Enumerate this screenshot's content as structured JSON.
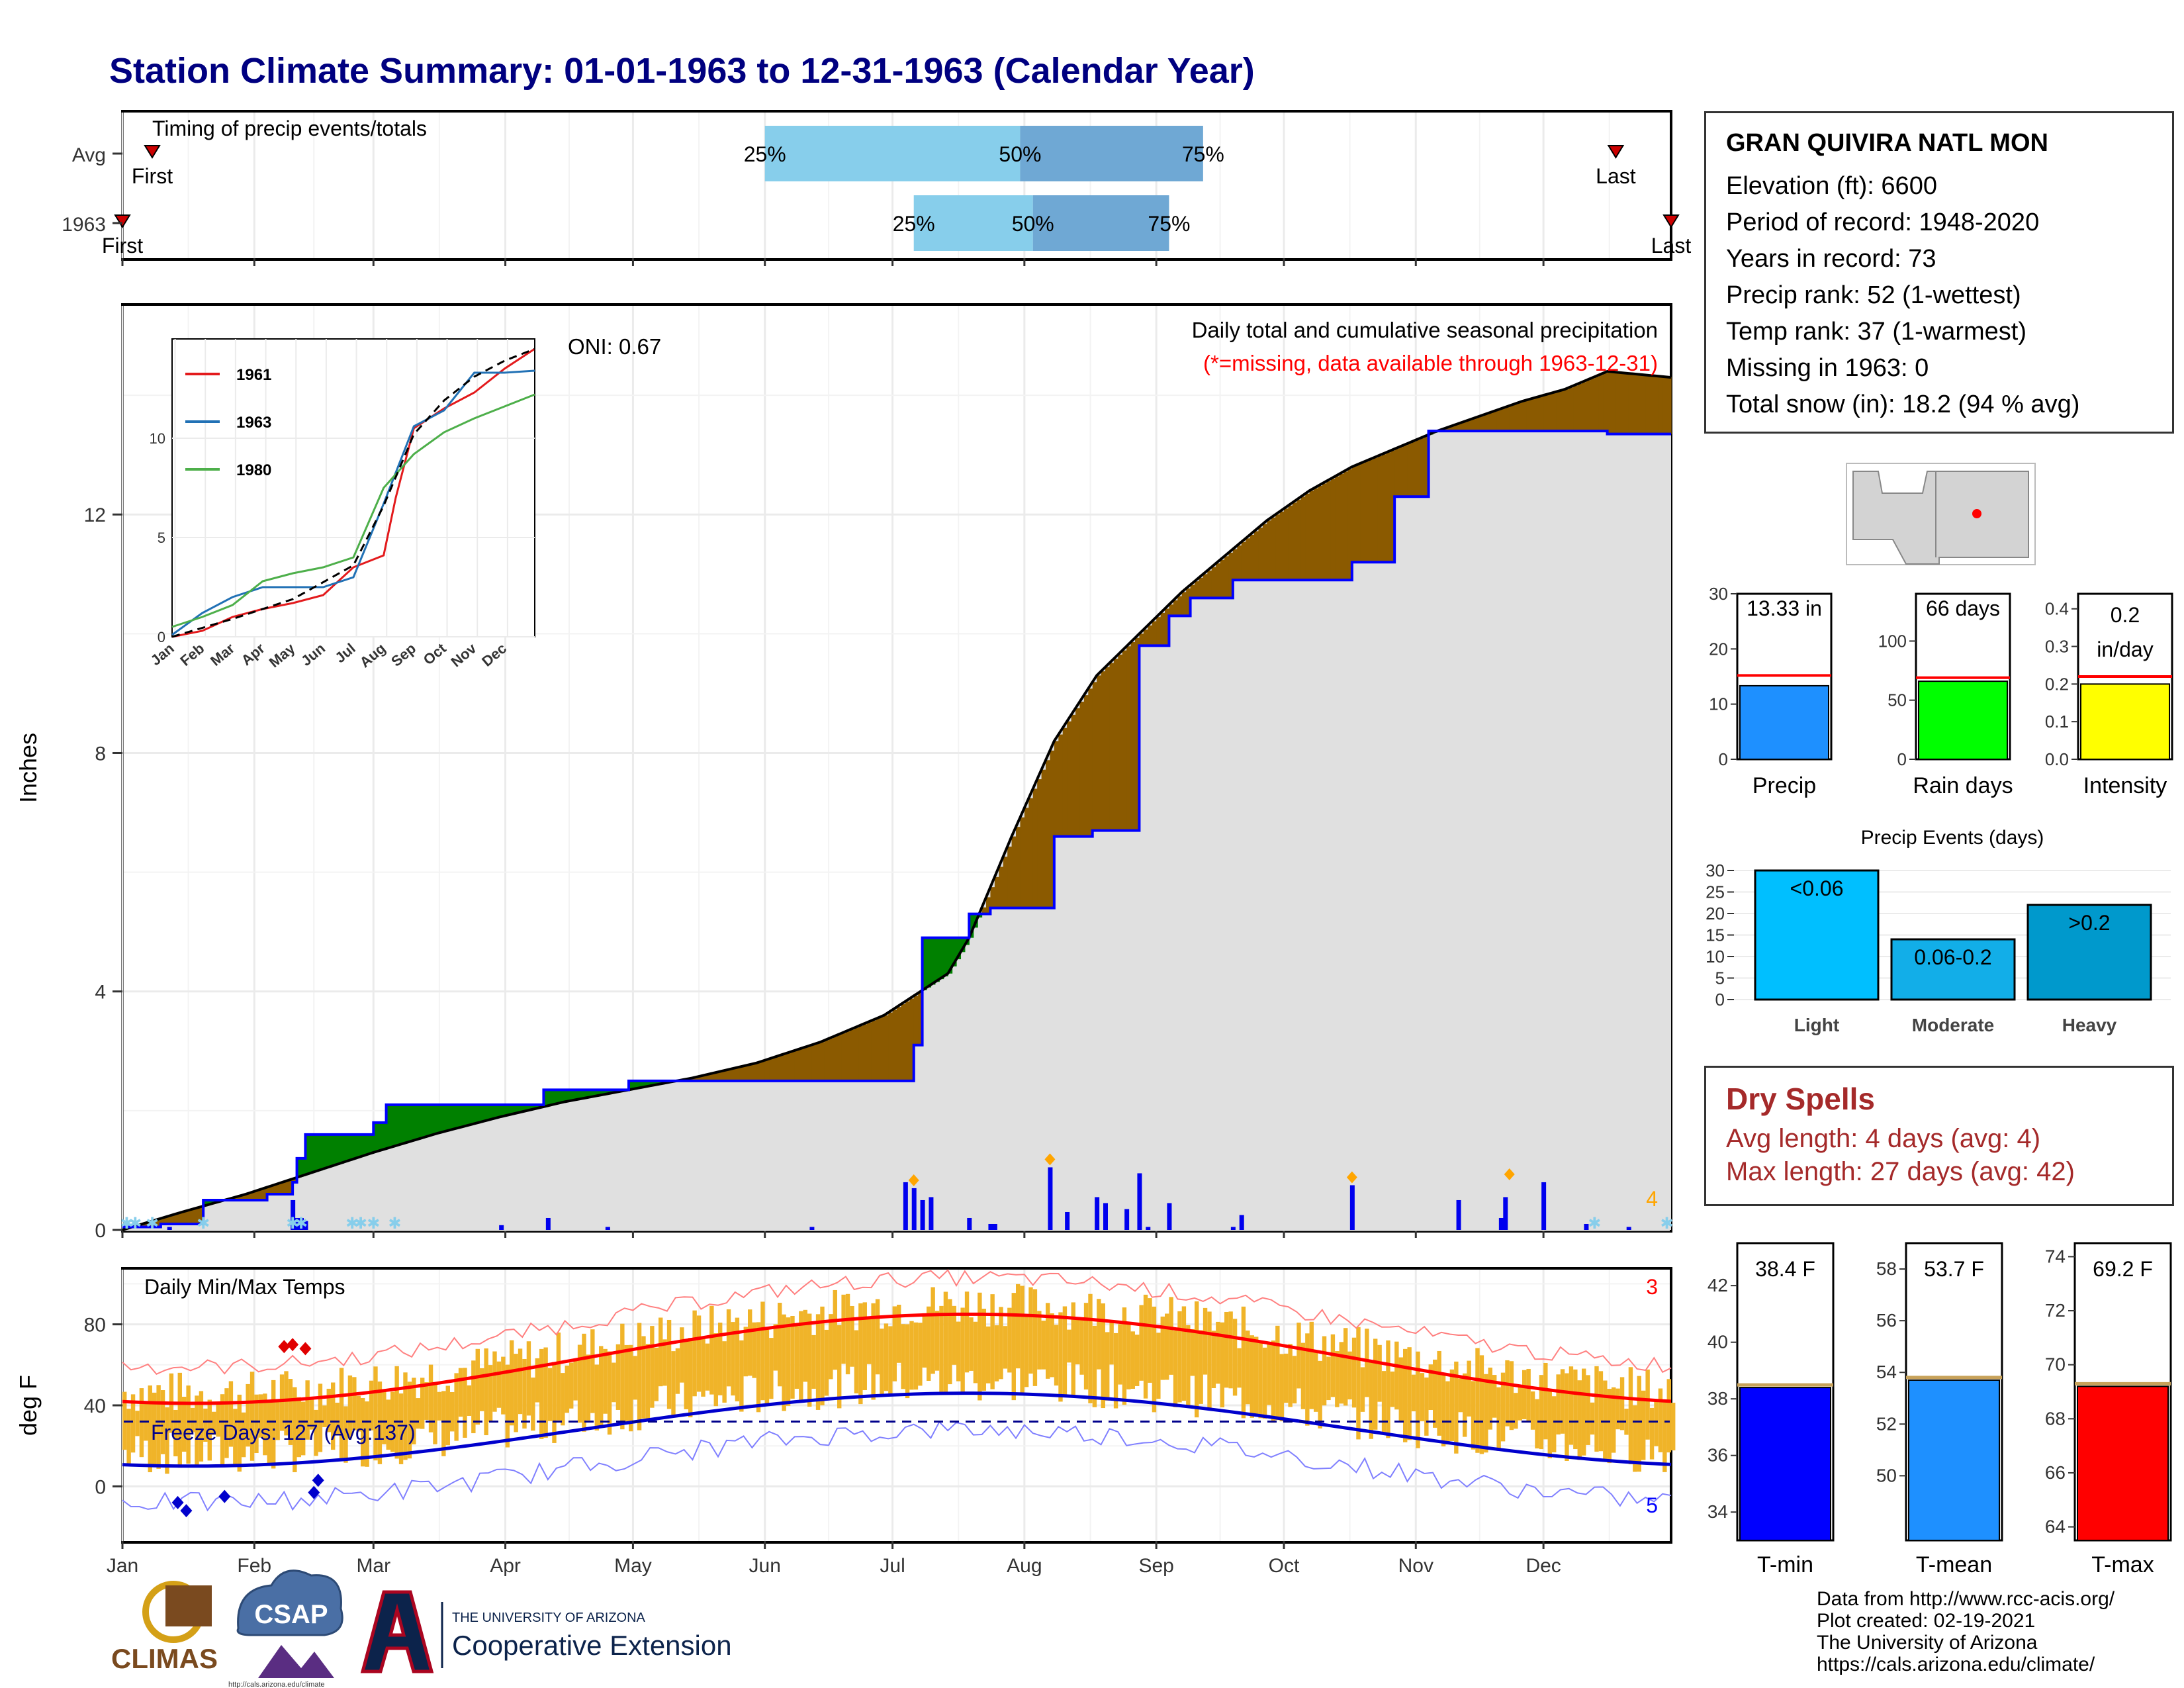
{
  "title": "Station Climate Summary: 01-01-1963 to 12-31-1963 (Calendar Year)",
  "timing": {
    "panel_title": "Timing of precip events/totals",
    "rows": [
      {
        "label": "Avg",
        "first_label": "First",
        "last_label": "Last",
        "p25": "25%",
        "p50": "50%",
        "p75": "75%",
        "first_doy": 8,
        "last_doy": 352,
        "q25_doy": 152,
        "q50_doy": 212,
        "q75_doy": 255
      },
      {
        "label": "1963",
        "first_label": "First",
        "last_label": "Last",
        "p25": "25%",
        "p50": "50%",
        "p75": "75%",
        "first_doy": 1,
        "last_doy": 365,
        "q25_doy": 187,
        "q50_doy": 215,
        "q75_doy": 247
      }
    ]
  },
  "precip": {
    "title_line1": "Daily total and cumulative seasonal precipitation",
    "title_line2": "(*=missing, data available through 1963-12-31)",
    "oni": "ONI: 0.67",
    "ylabel": "Inches",
    "ylim": [
      0,
      15.5
    ],
    "yticks": [
      "0",
      "4",
      "8",
      "12"
    ],
    "corner_count": "4",
    "normal_cumulative": {
      "doy": [
        1,
        15,
        30,
        45,
        60,
        75,
        90,
        105,
        120,
        135,
        150,
        165,
        180,
        195,
        200,
        210,
        220,
        230,
        240,
        250,
        260,
        270,
        280,
        290,
        300,
        310,
        320,
        330,
        340,
        350,
        365
      ],
      "in": [
        0,
        0.3,
        0.6,
        0.95,
        1.3,
        1.62,
        1.9,
        2.15,
        2.35,
        2.55,
        2.8,
        3.15,
        3.6,
        4.3,
        4.9,
        6.6,
        8.2,
        9.3,
        10.0,
        10.7,
        11.3,
        11.9,
        12.4,
        12.8,
        13.1,
        13.4,
        13.65,
        13.9,
        14.1,
        14.4,
        14.3
      ]
    },
    "year_cumulative": {
      "doy": [
        1,
        10,
        20,
        35,
        41,
        42,
        44,
        60,
        63,
        90,
        100,
        120,
        151,
        186,
        187,
        189,
        200,
        205,
        220,
        229,
        240,
        247,
        252,
        262,
        290,
        300,
        308,
        350,
        365
      ],
      "in": [
        0.05,
        0.1,
        0.5,
        0.6,
        0.8,
        1.2,
        1.6,
        1.8,
        2.1,
        2.1,
        2.35,
        2.5,
        2.5,
        2.5,
        3.1,
        4.9,
        5.3,
        5.4,
        6.6,
        6.7,
        9.8,
        10.3,
        10.6,
        10.9,
        11.2,
        12.3,
        13.4,
        13.35,
        13.35
      ]
    },
    "daily_bars": {
      "doy": [
        12,
        41,
        42,
        43,
        44,
        90,
        101,
        115,
        163,
        185,
        187,
        189,
        191,
        200,
        205,
        206,
        219,
        223,
        230,
        232,
        237,
        240,
        242,
        247,
        262,
        264,
        290,
        315,
        325,
        326,
        335,
        345,
        355
      ],
      "in": [
        0.05,
        0.5,
        0.2,
        0.2,
        0.15,
        0.08,
        0.2,
        0.05,
        0.05,
        0.8,
        0.7,
        0.5,
        0.55,
        0.2,
        0.1,
        0.1,
        1.05,
        0.3,
        0.55,
        0.45,
        0.35,
        0.95,
        0.05,
        0.45,
        0.05,
        0.25,
        0.75,
        0.5,
        0.2,
        0.55,
        0.8,
        0.1,
        0.05
      ]
    },
    "large_events_doy": [
      187,
      219,
      290,
      327
    ],
    "snow_doy": [
      2,
      4,
      8,
      20,
      41,
      43,
      55,
      57,
      60,
      65,
      347,
      364
    ]
  },
  "inset": {
    "yticks": [
      "0",
      "5",
      "10"
    ],
    "months": [
      "Jan",
      "Feb",
      "Mar",
      "Apr",
      "May",
      "Jun",
      "Jul",
      "Aug",
      "Sep",
      "Oct",
      "Nov",
      "Dec"
    ],
    "series": [
      {
        "name": "1961",
        "color": "#e31a1c",
        "pts": [
          [
            0,
            0
          ],
          [
            1,
            0.3
          ],
          [
            2,
            1
          ],
          [
            3,
            1.4
          ],
          [
            4,
            1.7
          ],
          [
            5,
            2.1
          ],
          [
            6,
            3.5
          ],
          [
            7,
            4.1
          ],
          [
            7.4,
            7
          ],
          [
            8,
            10.5
          ],
          [
            9,
            11.5
          ],
          [
            10,
            12.3
          ],
          [
            11,
            13.5
          ],
          [
            12,
            14.5
          ]
        ]
      },
      {
        "name": "1963",
        "color": "#2171b5",
        "pts": [
          [
            0,
            0.1
          ],
          [
            1,
            1.2
          ],
          [
            2,
            2
          ],
          [
            3,
            2.5
          ],
          [
            4,
            2.5
          ],
          [
            5,
            2.5
          ],
          [
            6,
            3
          ],
          [
            7,
            6.7
          ],
          [
            8,
            10.6
          ],
          [
            9,
            11.4
          ],
          [
            10,
            13.3
          ],
          [
            11,
            13.3
          ],
          [
            12,
            13.4
          ]
        ]
      },
      {
        "name": "1980",
        "color": "#4daf4a",
        "pts": [
          [
            0,
            0.5
          ],
          [
            1,
            1
          ],
          [
            2,
            1.6
          ],
          [
            3,
            2.8
          ],
          [
            4,
            3.2
          ],
          [
            5,
            3.5
          ],
          [
            6,
            4
          ],
          [
            7,
            7.5
          ],
          [
            8,
            9.2
          ],
          [
            9,
            10.3
          ],
          [
            10,
            11
          ],
          [
            11,
            11.6
          ],
          [
            12,
            12.2
          ]
        ]
      }
    ],
    "normal": [
      [
        0,
        0
      ],
      [
        2,
        0.9
      ],
      [
        4,
        1.9
      ],
      [
        6,
        3.6
      ],
      [
        7,
        6.6
      ],
      [
        8,
        10.2
      ],
      [
        9,
        11.9
      ],
      [
        10,
        13.1
      ],
      [
        11,
        13.9
      ],
      [
        12,
        14.5
      ]
    ]
  },
  "temp": {
    "panel_title": "Daily Min/Max Temps",
    "ylabel": "deg F",
    "freeze_text": "Freeze Days: 127 (Avg:137)",
    "yticks": [
      "0",
      "40",
      "80"
    ],
    "ylim": [
      -27,
      107
    ],
    "count_high": "3",
    "count_low": "5",
    "freeze_line": 32
  },
  "months": [
    "Jan",
    "Feb",
    "Mar",
    "Apr",
    "May",
    "Jun",
    "Jul",
    "Aug",
    "Sep",
    "Oct",
    "Nov",
    "Dec"
  ],
  "station": {
    "name": "GRAN QUIVIRA NATL MON",
    "lines": [
      "Elevation (ft): 6600",
      "Period of record: 1948-2020",
      "Years in record: 73",
      "Precip rank: 52 (1-wettest)",
      "Temp rank: 37 (1-warmest)",
      "Missing in 1963: 0",
      "Total snow (in): 18.2 (94 % avg)"
    ]
  },
  "mini_bars": [
    {
      "label": "Precip",
      "value_text": "13.33 in",
      "value": 13.33,
      "avg": 15.2,
      "max": 30,
      "ticks": [
        "0",
        "10",
        "20",
        "30"
      ],
      "color": "#1e90ff"
    },
    {
      "label": "Rain days",
      "value_text": "66 days",
      "value": 66,
      "avg": 69,
      "max": 140,
      "ticks": [
        "0",
        "50",
        "100"
      ],
      "color": "#00ff00"
    },
    {
      "label": "Intensity",
      "value_text_1": "0.2",
      "value_text_2": "in/day",
      "value": 0.2,
      "avg": 0.22,
      "max": 0.44,
      "ticks": [
        "0.0",
        "0.1",
        "0.2",
        "0.3",
        "0.4"
      ],
      "color": "#ffff00"
    }
  ],
  "events": {
    "title": "Precip Events (days)",
    "ticks": [
      "0",
      "5",
      "10",
      "15",
      "20",
      "25",
      "30"
    ],
    "bars": [
      {
        "label": "Light",
        "value_text": "<0.06",
        "value": 30,
        "color": "#00bfff"
      },
      {
        "label": "Moderate",
        "value_text": "0.06-0.2",
        "value": 14,
        "color": "#12aee8"
      },
      {
        "label": "Heavy",
        "value_text": ">0.2",
        "value": 22,
        "color": "#0099cc"
      }
    ]
  },
  "dry": {
    "title": "Dry Spells",
    "avg_line": "Avg length: 4 days (avg: 4)",
    "max_line": "Max length: 27 days (avg: 42)"
  },
  "temp_bars": [
    {
      "label": "T-min",
      "value_text": "38.4 F",
      "value": 38.4,
      "min": 33,
      "max": 43.5,
      "ticks": [
        34,
        36,
        38,
        40,
        42
      ],
      "color": "#0000ff"
    },
    {
      "label": "T-mean",
      "value_text": "53.7 F",
      "value": 53.7,
      "min": 47.5,
      "max": 59,
      "ticks": [
        50,
        52,
        54,
        56,
        58
      ],
      "color": "#1e90ff"
    },
    {
      "label": "T-max",
      "value_text": "69.2 F",
      "value": 69.2,
      "min": 63.5,
      "max": 74.5,
      "ticks": [
        64,
        66,
        68,
        70,
        72,
        74
      ],
      "color": "#ff0000"
    }
  ],
  "footer": {
    "lines": [
      "Data from http://www.rcc-acis.org/",
      "Plot created: 02-19-2021",
      "The University of Arizona",
      "https://cals.arizona.edu/climate/"
    ],
    "logo_climas": "CLIMAS",
    "logo_csap": "CSAP",
    "logo_csap_url": "http://cals.arizona.edu/climate",
    "ua_line1": "THE UNIVERSITY OF ARIZONA",
    "ua_line2": "Cooperative Extension"
  },
  "colors": {
    "title": "#000080",
    "above_normal": "#8b5a00",
    "below_normal": "#008000",
    "cum_line": "#0000ff",
    "fill_grey": "#e0e0e0",
    "temp_bar": "#f0b429",
    "dry_text": "#a52a2a",
    "snow": "#87ceeb",
    "event_marker": "#ffa500"
  }
}
